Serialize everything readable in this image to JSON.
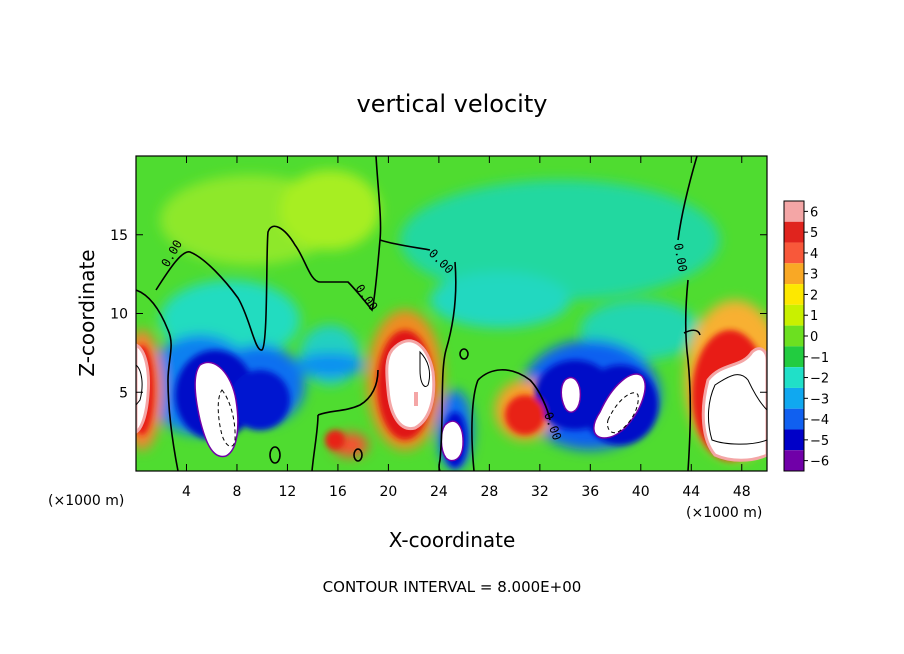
{
  "chart_data": {
    "type": "heatmap",
    "title": "vertical velocity",
    "xlabel": "X-coordinate",
    "ylabel": "Z-coordinate",
    "x_unit": "(×1000 m)",
    "x_unit_right": "(×1000 m)",
    "xlim": [
      0,
      50
    ],
    "ylim": [
      0,
      20
    ],
    "x_ticks": [
      4,
      8,
      12,
      16,
      20,
      24,
      28,
      32,
      36,
      40,
      44,
      48
    ],
    "y_ticks": [
      5,
      10,
      15
    ],
    "colorbar": {
      "levels": [
        6,
        5,
        4,
        3,
        2,
        1,
        0,
        -1,
        -2,
        -3,
        -4,
        -5,
        -6
      ],
      "colors": [
        "#f4a6a6",
        "#e0241e",
        "#f8583a",
        "#f9a825",
        "#fde800",
        "#c9f000",
        "#6ce020",
        "#22cc40",
        "#20e0c8",
        "#10a8f0",
        "#1060f0",
        "#0000c8",
        "#7000a8"
      ]
    },
    "contour_label": "0.00",
    "note": "CONTOUR INTERVAL = 8.000E+00",
    "features": [
      {
        "kind": "downdraft",
        "x": 7.5,
        "z": 4.5,
        "w": -6
      },
      {
        "kind": "downdraft",
        "x": 11,
        "z": 5.5,
        "w": -4
      },
      {
        "kind": "updraft",
        "x": 20.5,
        "z": 5.5,
        "w": 6
      },
      {
        "kind": "downdraft",
        "x": 25,
        "z": 2.5,
        "w": -5
      },
      {
        "kind": "updraft",
        "x": 30.5,
        "z": 3.5,
        "w": 5
      },
      {
        "kind": "downdraft",
        "x": 34,
        "z": 4.5,
        "w": -5
      },
      {
        "kind": "downdraft",
        "x": 38,
        "z": 4,
        "w": -6
      },
      {
        "kind": "updraft",
        "x": 47,
        "z": 5,
        "w": 6
      },
      {
        "kind": "updraft",
        "x": 0.5,
        "z": 5.5,
        "w": 6
      },
      {
        "kind": "updraft",
        "x": 15.5,
        "z": 2.5,
        "w": 4
      }
    ]
  }
}
